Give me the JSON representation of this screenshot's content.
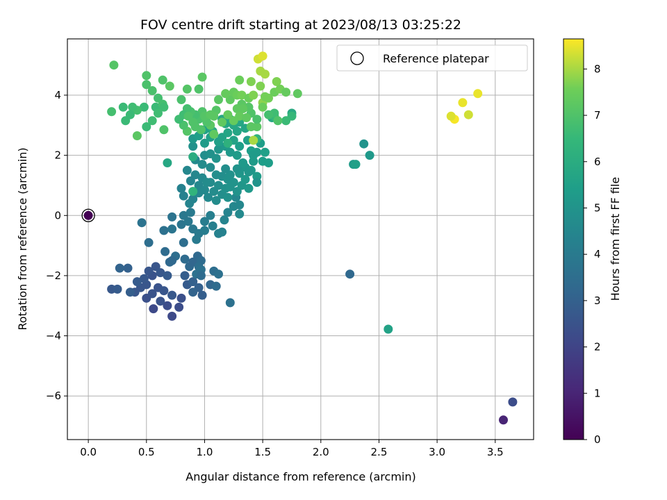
{
  "chart_data": {
    "type": "scatter",
    "title": "FOV centre drift starting at 2023/08/13 03:25:22",
    "xlabel": "Angular distance from reference (arcmin)",
    "ylabel": "Rotation from reference (arcmin)",
    "xlim": [
      -0.18,
      3.83
    ],
    "ylim": [
      -7.45,
      5.87
    ],
    "xticks": [
      0.0,
      0.5,
      1.0,
      1.5,
      2.0,
      2.5,
      3.0,
      3.5
    ],
    "xtick_labels": [
      "0.0",
      "0.5",
      "1.0",
      "1.5",
      "2.0",
      "2.5",
      "3.0",
      "3.5"
    ],
    "yticks": [
      -6,
      -4,
      -2,
      0,
      2,
      4
    ],
    "ytick_labels": [
      "−6",
      "−4",
      "−2",
      "0",
      "2",
      "4"
    ],
    "grid": true,
    "legend": {
      "placement": "top-right",
      "entries": [
        "Reference platepar"
      ]
    },
    "reference_point": {
      "x": 0.0,
      "y": 0.0,
      "label": "Reference platepar"
    },
    "colorbar": {
      "label": "Hours from first FF file",
      "range": [
        0,
        8.65
      ],
      "ticks": [
        0,
        1,
        2,
        3,
        4,
        5,
        6,
        7,
        8
      ],
      "colormap": "viridis"
    },
    "points": [
      [
        0.0,
        0.0,
        0.0
      ],
      [
        3.57,
        -6.8,
        1.0
      ],
      [
        3.65,
        -6.2,
        2.3
      ],
      [
        0.72,
        -3.35,
        2.2
      ],
      [
        0.56,
        -3.1,
        2.2
      ],
      [
        0.68,
        -3.0,
        2.3
      ],
      [
        0.8,
        -2.75,
        2.4
      ],
      [
        0.78,
        -3.05,
        2.3
      ],
      [
        0.5,
        -2.75,
        2.4
      ],
      [
        0.62,
        -2.85,
        2.5
      ],
      [
        0.55,
        -2.6,
        2.5
      ],
      [
        0.4,
        -2.55,
        2.6
      ],
      [
        0.45,
        -2.4,
        2.6
      ],
      [
        0.2,
        -2.45,
        2.7
      ],
      [
        0.25,
        -2.45,
        2.8
      ],
      [
        0.5,
        -2.3,
        2.6
      ],
      [
        0.48,
        -2.1,
        2.7
      ],
      [
        0.55,
        -2.0,
        2.5
      ],
      [
        0.52,
        -1.85,
        2.6
      ],
      [
        0.58,
        -1.7,
        2.6
      ],
      [
        0.62,
        -1.9,
        2.7
      ],
      [
        0.68,
        -2.0,
        2.8
      ],
      [
        0.6,
        -2.4,
        2.5
      ],
      [
        0.65,
        -2.5,
        2.6
      ],
      [
        0.72,
        -2.65,
        2.7
      ],
      [
        0.85,
        -2.3,
        2.8
      ],
      [
        0.83,
        -2.0,
        2.9
      ],
      [
        0.9,
        -2.2,
        3.0
      ],
      [
        0.95,
        -2.4,
        3.0
      ],
      [
        0.98,
        -2.65,
        2.9
      ],
      [
        0.9,
        -2.55,
        3.1
      ],
      [
        0.42,
        -2.2,
        2.8
      ],
      [
        0.34,
        -1.75,
        3.0
      ],
      [
        0.27,
        -1.75,
        3.1
      ],
      [
        0.36,
        -2.55,
        2.9
      ],
      [
        0.7,
        -1.55,
        3.3
      ],
      [
        0.66,
        -1.2,
        3.4
      ],
      [
        0.75,
        -1.35,
        3.5
      ],
      [
        0.72,
        -1.5,
        3.3
      ],
      [
        0.82,
        -0.9,
        3.5
      ],
      [
        0.83,
        -1.45,
        3.4
      ],
      [
        0.87,
        -1.7,
        3.3
      ],
      [
        0.9,
        -1.55,
        3.2
      ],
      [
        0.94,
        -1.35,
        3.3
      ],
      [
        0.97,
        -1.5,
        3.4
      ],
      [
        0.95,
        -1.7,
        3.5
      ],
      [
        0.93,
        -1.95,
        3.6
      ],
      [
        0.97,
        -1.8,
        3.6
      ],
      [
        0.97,
        -2.0,
        3.4
      ],
      [
        1.05,
        -2.3,
        3.2
      ],
      [
        1.1,
        -2.35,
        3.4
      ],
      [
        1.08,
        -1.85,
        3.5
      ],
      [
        1.12,
        -1.95,
        3.6
      ],
      [
        1.22,
        -2.9,
        3.6
      ],
      [
        0.46,
        -0.24,
        3.7
      ],
      [
        0.52,
        -0.9,
        3.5
      ],
      [
        0.65,
        -0.5,
        3.6
      ],
      [
        0.72,
        -0.45,
        3.8
      ],
      [
        0.72,
        -0.05,
        3.7
      ],
      [
        0.8,
        -0.3,
        3.8
      ],
      [
        0.86,
        -0.2,
        3.9
      ],
      [
        0.82,
        0.0,
        3.9
      ],
      [
        0.88,
        0.1,
        4.0
      ],
      [
        0.9,
        -0.45,
        3.9
      ],
      [
        0.95,
        -0.6,
        4.0
      ],
      [
        0.93,
        -0.8,
        4.0
      ],
      [
        1.0,
        -0.5,
        4.1
      ],
      [
        1.0,
        -0.2,
        4.1
      ],
      [
        1.05,
        0.0,
        4.2
      ],
      [
        1.07,
        -0.35,
        4.2
      ],
      [
        1.12,
        -0.6,
        4.3
      ],
      [
        1.15,
        -0.55,
        4.3
      ],
      [
        1.17,
        -0.15,
        4.4
      ],
      [
        1.2,
        0.1,
        4.4
      ],
      [
        1.25,
        0.3,
        4.5
      ],
      [
        1.27,
        0.6,
        4.5
      ],
      [
        1.3,
        0.35,
        4.5
      ],
      [
        1.3,
        0.05,
        4.6
      ],
      [
        0.8,
        0.9,
        4.3
      ],
      [
        0.82,
        0.65,
        4.3
      ],
      [
        0.87,
        0.4,
        4.4
      ],
      [
        0.9,
        0.55,
        4.4
      ],
      [
        0.95,
        0.75,
        4.5
      ],
      [
        0.95,
        1.0,
        4.5
      ],
      [
        1.0,
        0.85,
        4.6
      ],
      [
        1.03,
        0.6,
        4.6
      ],
      [
        1.05,
        1.1,
        4.7
      ],
      [
        1.08,
        0.8,
        4.7
      ],
      [
        1.1,
        0.5,
        4.7
      ],
      [
        1.12,
        1.0,
        4.8
      ],
      [
        1.15,
        0.7,
        4.8
      ],
      [
        1.15,
        1.3,
        4.8
      ],
      [
        1.18,
        0.9,
        4.9
      ],
      [
        1.2,
        1.2,
        4.9
      ],
      [
        1.2,
        0.6,
        4.9
      ],
      [
        1.22,
        0.95,
        5.0
      ],
      [
        1.25,
        1.1,
        5.0
      ],
      [
        1.28,
        0.8,
        5.0
      ],
      [
        1.3,
        1.4,
        5.1
      ],
      [
        1.32,
        1.0,
        5.1
      ],
      [
        1.35,
        1.6,
        5.1
      ],
      [
        1.35,
        1.2,
        5.2
      ],
      [
        1.38,
        0.9,
        5.2
      ],
      [
        1.4,
        1.5,
        5.2
      ],
      [
        1.42,
        1.8,
        5.3
      ],
      [
        1.45,
        1.3,
        5.3
      ],
      [
        1.45,
        2.1,
        5.3
      ],
      [
        1.48,
        2.4,
        5.4
      ],
      [
        1.5,
        1.8,
        5.4
      ],
      [
        1.55,
        1.75,
        5.4
      ],
      [
        1.52,
        2.1,
        5.5
      ],
      [
        1.45,
        1.1,
        5.0
      ],
      [
        1.38,
        1.45,
        5.1
      ],
      [
        1.28,
        1.55,
        5.0
      ],
      [
        1.22,
        1.35,
        4.9
      ],
      [
        1.18,
        1.55,
        4.8
      ],
      [
        1.1,
        1.35,
        4.8
      ],
      [
        1.05,
        1.6,
        4.7
      ],
      [
        0.98,
        1.25,
        4.6
      ],
      [
        0.92,
        1.35,
        4.5
      ],
      [
        0.88,
        1.15,
        4.4
      ],
      [
        0.85,
        1.5,
        4.5
      ],
      [
        0.92,
        1.85,
        4.6
      ],
      [
        0.98,
        1.7,
        4.7
      ],
      [
        1.0,
        2.0,
        4.8
      ],
      [
        1.05,
        2.05,
        4.9
      ],
      [
        1.1,
        1.9,
        5.0
      ],
      [
        1.12,
        2.2,
        5.1
      ],
      [
        1.18,
        2.3,
        5.2
      ],
      [
        1.22,
        2.1,
        5.2
      ],
      [
        1.28,
        2.0,
        5.3
      ],
      [
        1.3,
        2.3,
        5.4
      ],
      [
        1.33,
        1.75,
        5.2
      ],
      [
        1.37,
        2.5,
        5.5
      ],
      [
        1.4,
        2.15,
        5.4
      ],
      [
        1.42,
        2.0,
        5.3
      ],
      [
        1.02,
        1.1,
        4.7
      ],
      [
        0.9,
        2.3,
        4.9
      ],
      [
        0.9,
        2.55,
        5.2
      ],
      [
        0.95,
        2.65,
        5.4
      ],
      [
        1.0,
        2.4,
        5.3
      ],
      [
        1.05,
        2.6,
        5.5
      ],
      [
        1.12,
        2.45,
        5.5
      ],
      [
        1.15,
        2.6,
        5.6
      ],
      [
        1.2,
        2.75,
        5.7
      ],
      [
        1.25,
        2.5,
        5.6
      ],
      [
        1.28,
        2.8,
        5.7
      ],
      [
        1.3,
        3.1,
        5.8
      ],
      [
        1.35,
        2.9,
        5.7
      ],
      [
        1.15,
        3.2,
        5.8
      ],
      [
        1.18,
        3.05,
        5.8
      ],
      [
        1.22,
        3.2,
        5.9
      ],
      [
        1.25,
        3.0,
        5.8
      ],
      [
        1.07,
        2.8,
        5.9
      ],
      [
        1.0,
        2.85,
        5.6
      ],
      [
        0.68,
        1.75,
        5.8
      ],
      [
        1.58,
        3.25,
        5.9
      ],
      [
        1.75,
        3.4,
        5.9
      ],
      [
        2.28,
        1.7,
        5.3
      ],
      [
        2.3,
        1.7,
        5.5
      ],
      [
        2.37,
        2.38,
        5.0
      ],
      [
        2.42,
        2.0,
        5.2
      ],
      [
        2.25,
        -1.95,
        3.3
      ],
      [
        2.58,
        -3.78,
        5.6
      ],
      [
        0.9,
        1.95,
        6.0
      ],
      [
        0.9,
        0.8,
        6.3
      ],
      [
        1.2,
        2.4,
        6.2
      ],
      [
        1.45,
        2.55,
        6.3
      ],
      [
        1.6,
        3.3,
        6.5
      ],
      [
        1.75,
        3.3,
        6.5
      ],
      [
        1.7,
        3.15,
        6.6
      ],
      [
        1.6,
        3.4,
        6.7
      ],
      [
        1.55,
        3.35,
        6.8
      ],
      [
        1.63,
        3.15,
        7.0
      ],
      [
        1.45,
        2.95,
        7.2
      ],
      [
        1.45,
        3.2,
        6.9
      ],
      [
        1.4,
        3.4,
        7.0
      ],
      [
        1.38,
        3.6,
        7.1
      ],
      [
        1.32,
        3.7,
        7.2
      ],
      [
        1.28,
        3.55,
        7.3
      ],
      [
        1.22,
        3.85,
        7.3
      ],
      [
        1.25,
        4.1,
        7.4
      ],
      [
        1.28,
        4.0,
        7.5
      ],
      [
        1.32,
        4.0,
        7.6
      ],
      [
        1.38,
        3.9,
        7.5
      ],
      [
        1.42,
        4.0,
        7.7
      ],
      [
        1.48,
        4.3,
        7.7
      ],
      [
        1.5,
        3.75,
        7.8
      ],
      [
        1.55,
        3.9,
        7.6
      ],
      [
        1.6,
        4.1,
        7.5
      ],
      [
        1.62,
        4.45,
        7.7
      ],
      [
        1.65,
        4.2,
        7.6
      ],
      [
        1.7,
        4.1,
        7.4
      ],
      [
        1.8,
        4.05,
        7.3
      ],
      [
        1.48,
        4.8,
        8.0
      ],
      [
        1.52,
        4.7,
        8.0
      ],
      [
        1.46,
        5.2,
        8.3
      ],
      [
        1.5,
        5.3,
        8.4
      ],
      [
        1.52,
        3.95,
        7.6
      ],
      [
        1.4,
        4.45,
        7.7
      ],
      [
        1.3,
        4.5,
        7.5
      ],
      [
        1.18,
        4.05,
        7.4
      ],
      [
        1.12,
        3.85,
        7.2
      ],
      [
        1.1,
        3.5,
        7.1
      ],
      [
        1.08,
        3.3,
        7.2
      ],
      [
        1.05,
        3.0,
        7.2
      ],
      [
        1.02,
        3.1,
        7.0
      ],
      [
        0.98,
        3.45,
        7.0
      ],
      [
        0.95,
        3.2,
        6.9
      ],
      [
        0.92,
        3.35,
        6.8
      ],
      [
        0.9,
        3.1,
        7.0
      ],
      [
        0.88,
        3.45,
        6.9
      ],
      [
        0.85,
        3.55,
        6.8
      ],
      [
        0.82,
        3.35,
        6.7
      ],
      [
        0.8,
        3.85,
        6.9
      ],
      [
        0.86,
        3.3,
        7.0
      ],
      [
        0.85,
        2.8,
        7.1
      ],
      [
        0.92,
        2.95,
        7.0
      ],
      [
        0.97,
        2.85,
        7.0
      ],
      [
        1.0,
        3.3,
        7.1
      ],
      [
        1.05,
        3.35,
        7.2
      ],
      [
        1.08,
        2.7,
        7.3
      ],
      [
        1.15,
        3.1,
        7.3
      ],
      [
        1.2,
        3.35,
        7.4
      ],
      [
        1.25,
        3.15,
        7.4
      ],
      [
        1.3,
        3.3,
        7.4
      ],
      [
        1.33,
        3.55,
        7.3
      ],
      [
        1.36,
        3.25,
        7.3
      ],
      [
        1.4,
        2.95,
        7.2
      ],
      [
        1.5,
        3.6,
        7.5
      ],
      [
        1.42,
        2.5,
        8.0
      ],
      [
        0.98,
        4.6,
        7.2
      ],
      [
        0.95,
        4.2,
        7.0
      ],
      [
        0.85,
        4.2,
        7.1
      ],
      [
        0.82,
        3.0,
        6.9
      ],
      [
        0.78,
        3.2,
        6.7
      ],
      [
        0.7,
        4.3,
        7.2
      ],
      [
        0.64,
        4.5,
        7.0
      ],
      [
        0.6,
        3.9,
        6.8
      ],
      [
        0.58,
        3.6,
        6.6
      ],
      [
        0.64,
        3.7,
        6.8
      ],
      [
        0.6,
        3.4,
        6.7
      ],
      [
        0.55,
        4.15,
        6.9
      ],
      [
        0.5,
        4.35,
        6.9
      ],
      [
        0.5,
        4.65,
        7.0
      ],
      [
        0.48,
        3.6,
        6.6
      ],
      [
        0.55,
        3.15,
        6.7
      ],
      [
        0.5,
        2.95,
        6.6
      ],
      [
        0.42,
        3.5,
        6.8
      ],
      [
        0.38,
        3.6,
        6.7
      ],
      [
        0.36,
        3.35,
        6.6
      ],
      [
        0.3,
        3.6,
        6.6
      ],
      [
        0.32,
        3.15,
        6.6
      ],
      [
        0.2,
        3.45,
        6.8
      ],
      [
        0.22,
        5.0,
        7.1
      ],
      [
        0.42,
        2.65,
        7.2
      ],
      [
        0.65,
        2.85,
        7.0
      ],
      [
        0.65,
        3.6,
        6.7
      ],
      [
        3.15,
        3.2,
        8.6
      ],
      [
        3.12,
        3.3,
        8.4
      ],
      [
        3.22,
        3.75,
        8.5
      ],
      [
        3.27,
        3.35,
        8.3
      ],
      [
        3.35,
        4.05,
        8.5
      ]
    ]
  }
}
